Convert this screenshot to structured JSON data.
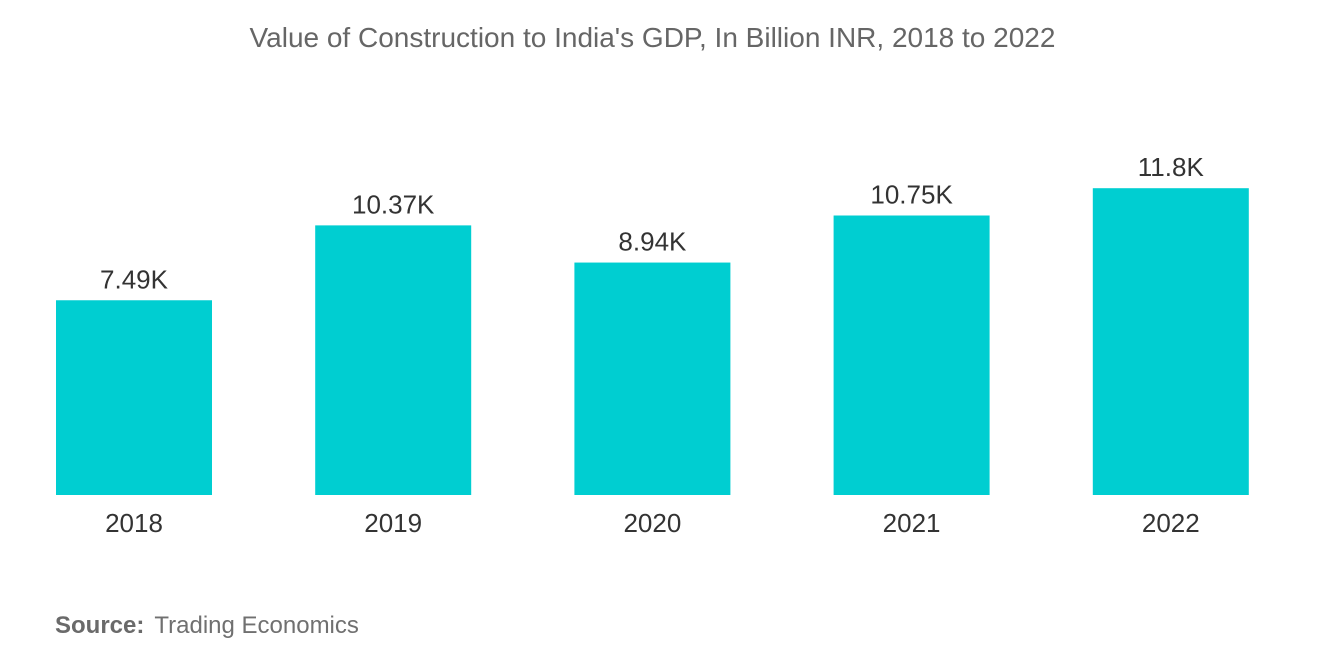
{
  "chart_data": {
    "type": "bar",
    "title": "Value of Construction to India's GDP, In Billion INR,  2018 to 2022",
    "categories": [
      "2018",
      "2019",
      "2020",
      "2021",
      "2022"
    ],
    "values": [
      7490,
      10370,
      8940,
      10750,
      11800
    ],
    "value_labels": [
      "7.49K",
      "10.37K",
      "8.94K",
      "10.75K",
      "11.8K"
    ],
    "xlabel": "",
    "ylabel": "",
    "ylim": [
      0,
      12000
    ],
    "grid": false,
    "legend": "none",
    "bar_color": "#00CED1"
  },
  "source": {
    "label": "Source:",
    "text": "Trading Economics"
  }
}
